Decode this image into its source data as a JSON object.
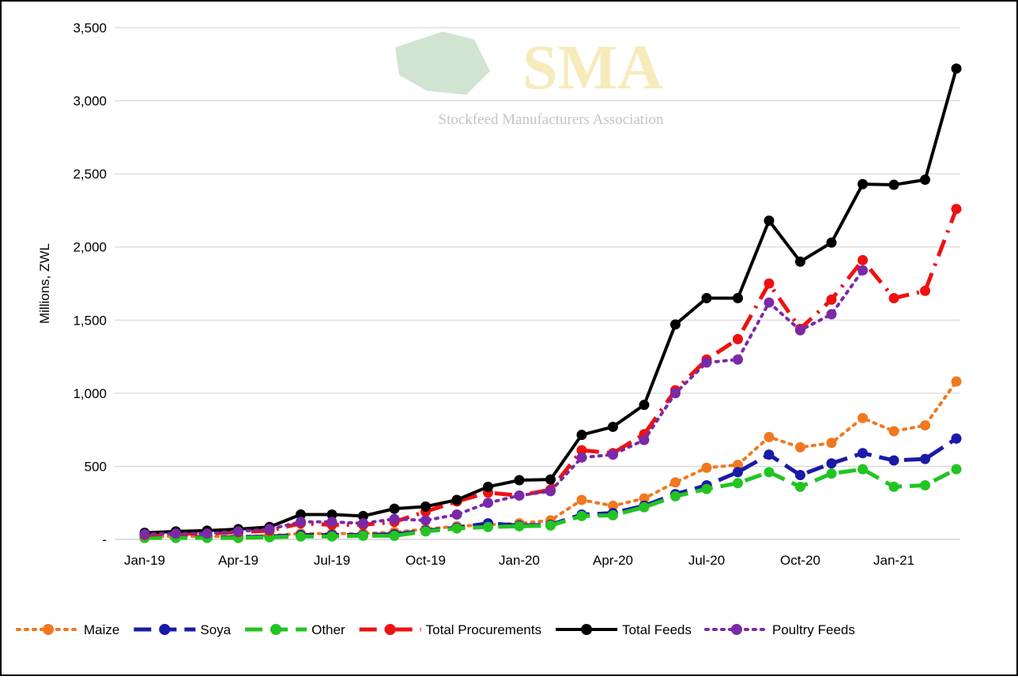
{
  "chart_data": {
    "type": "line",
    "y_axis_label": "Millions, ZWL",
    "watermark": {
      "title": "SMA",
      "subtitle": "Stockfeed Manufacturers Association"
    },
    "categories": [
      "Jan-19",
      null,
      null,
      "Apr-19",
      null,
      null,
      "Jul-19",
      null,
      null,
      "Oct-19",
      null,
      null,
      "Jan-20",
      null,
      null,
      "Apr-20",
      null,
      null,
      "Jul-20",
      null,
      null,
      "Oct-20",
      null,
      null,
      "Jan-21",
      null,
      null
    ],
    "ylim": [
      0,
      3500
    ],
    "yticks": [
      {
        "value": 0,
        "label": "-"
      },
      500,
      {
        "value": 1000,
        "label": "1,000"
      },
      {
        "value": 1500,
        "label": "1,500"
      },
      {
        "value": 2000,
        "label": "2,000"
      },
      {
        "value": 2500,
        "label": "2,500"
      },
      {
        "value": 3000,
        "label": "3,000"
      },
      {
        "value": 3500,
        "label": "3,500"
      }
    ],
    "grid": true,
    "legend": "bottom",
    "series": [
      {
        "name": "Maize",
        "color": "#f07820",
        "line_style": "dotted",
        "values": [
          20,
          20,
          20,
          20,
          25,
          40,
          40,
          40,
          50,
          70,
          90,
          100,
          110,
          130,
          270,
          230,
          280,
          390,
          490,
          510,
          700,
          630,
          660,
          830,
          740,
          780,
          1080
        ]
      },
      {
        "name": "Soya",
        "color": "#1a1aa8",
        "line_style": "dashed",
        "values": [
          15,
          15,
          15,
          15,
          20,
          30,
          30,
          30,
          35,
          60,
          80,
          110,
          95,
          100,
          170,
          180,
          230,
          310,
          370,
          460,
          580,
          440,
          520,
          590,
          540,
          550,
          690
        ]
      },
      {
        "name": "Other",
        "color": "#22c422",
        "line_style": "dashed",
        "values": [
          10,
          10,
          10,
          10,
          15,
          20,
          20,
          25,
          25,
          55,
          75,
          85,
          90,
          95,
          160,
          165,
          220,
          295,
          345,
          385,
          460,
          360,
          450,
          480,
          360,
          370,
          480
        ]
      },
      {
        "name": "Total Procurements",
        "color": "#ee1111",
        "line_style": "dashdot",
        "values": [
          30,
          40,
          40,
          50,
          60,
          110,
          100,
          100,
          120,
          190,
          260,
          320,
          300,
          340,
          610,
          590,
          720,
          1020,
          1230,
          1370,
          1750,
          1440,
          1640,
          1910,
          1650,
          1700,
          2260
        ]
      },
      {
        "name": "Total Feeds",
        "color": "#000000",
        "line_style": "solid",
        "values": [
          45,
          55,
          60,
          70,
          85,
          170,
          170,
          160,
          210,
          225,
          270,
          360,
          405,
          410,
          715,
          770,
          920,
          1470,
          1650,
          1650,
          2180,
          1900,
          2030,
          2430,
          2425,
          2460,
          3220
        ]
      },
      {
        "name": "Poultry Feeds",
        "color": "#7a2aa8",
        "line_style": "dotted",
        "values": [
          35,
          40,
          40,
          55,
          70,
          120,
          120,
          110,
          140,
          130,
          170,
          250,
          300,
          330,
          560,
          580,
          680,
          1000,
          1210,
          1230,
          1620,
          1430,
          1540,
          1840,
          null,
          null,
          null
        ]
      }
    ]
  }
}
